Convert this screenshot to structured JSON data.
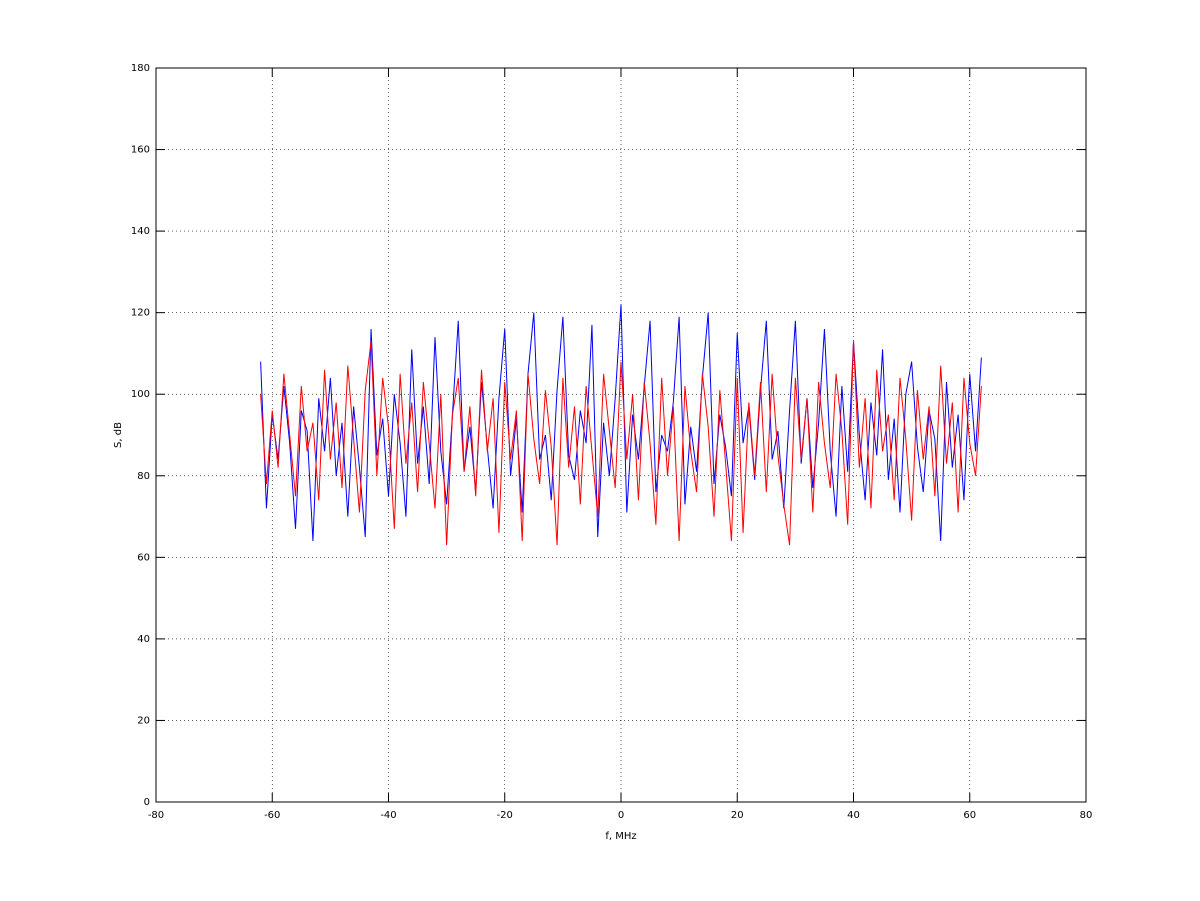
{
  "chart_data": {
    "type": "line",
    "x_label": "f, MHz",
    "y_label": "S, dB",
    "x": [
      -62,
      -61,
      -60,
      -59,
      -58,
      -57,
      -56,
      -55,
      -54,
      -53,
      -52,
      -51,
      -50,
      -49,
      -48,
      -47,
      -46,
      -45,
      -44,
      -43,
      -42,
      -41,
      -40,
      -39,
      -38,
      -37,
      -36,
      -35,
      -34,
      -33,
      -32,
      -31,
      -30,
      -29,
      -28,
      -27,
      -26,
      -25,
      -24,
      -23,
      -22,
      -21,
      -20,
      -19,
      -18,
      -17,
      -16,
      -15,
      -14,
      -13,
      -12,
      -11,
      -10,
      -9,
      -8,
      -7,
      -6,
      -5,
      -4,
      -3,
      -2,
      -1,
      0,
      1,
      2,
      3,
      4,
      5,
      6,
      7,
      8,
      9,
      10,
      11,
      12,
      13,
      14,
      15,
      16,
      17,
      18,
      19,
      20,
      21,
      22,
      23,
      24,
      25,
      26,
      27,
      28,
      29,
      30,
      31,
      32,
      33,
      34,
      35,
      36,
      37,
      38,
      39,
      40,
      41,
      42,
      43,
      44,
      45,
      46,
      47,
      48,
      49,
      50,
      51,
      52,
      53,
      54,
      55,
      56,
      57,
      58,
      59,
      60,
      61,
      62
    ],
    "series": [
      {
        "color": "#0000ff",
        "values": [
          108,
          72,
          95,
          84,
          102,
          88,
          67,
          96,
          91,
          64,
          99,
          86,
          104,
          80,
          93,
          70,
          97,
          82,
          65,
          116,
          85,
          94,
          75,
          100,
          88,
          70,
          111,
          83,
          97,
          78,
          114,
          86,
          73,
          95,
          118,
          81,
          92,
          76,
          103,
          87,
          72,
          99,
          116,
          80,
          94,
          71,
          105,
          120,
          84,
          90,
          74,
          101,
          119,
          85,
          79,
          96,
          88,
          117,
          65,
          93,
          80,
          99,
          122,
          71,
          95,
          84,
          102,
          118,
          76,
          90,
          86,
          98,
          119,
          73,
          92,
          81,
          104,
          120,
          78,
          95,
          87,
          75,
          115,
          88,
          97,
          79,
          101,
          118,
          84,
          91,
          72,
          96,
          118,
          83,
          99,
          77,
          93,
          116,
          86,
          70,
          102,
          81,
          113,
          90,
          74,
          98,
          85,
          111,
          79,
          94,
          71,
          100,
          108,
          87,
          76,
          96,
          89,
          64,
          103,
          82,
          95,
          74,
          105,
          86,
          109
        ]
      },
      {
        "color": "#ff0000",
        "values": [
          100,
          78,
          96,
          82,
          105,
          90,
          75,
          102,
          86,
          93,
          74,
          106,
          84,
          98,
          77,
          107,
          89,
          71,
          101,
          113,
          80,
          104,
          92,
          67,
          105,
          83,
          98,
          76,
          103,
          88,
          72,
          100,
          63,
          95,
          104,
          81,
          97,
          75,
          106,
          86,
          99,
          66,
          103,
          84,
          96,
          64,
          105,
          89,
          78,
          101,
          87,
          63,
          104,
          82,
          97,
          73,
          102,
          86,
          70,
          105,
          91,
          77,
          108,
          84,
          100,
          74,
          103,
          88,
          68,
          104,
          80,
          97,
          64,
          102,
          86,
          76,
          105,
          92,
          70,
          101,
          83,
          64,
          104,
          66,
          98,
          80,
          103,
          76,
          105,
          85,
          73,
          63,
          104,
          84,
          99,
          71,
          103,
          88,
          77,
          105,
          91,
          68,
          113,
          82,
          99,
          72,
          106,
          86,
          95,
          74,
          104,
          89,
          69,
          101,
          84,
          97,
          75,
          107,
          83,
          98,
          71,
          104,
          88,
          80,
          102
        ]
      }
    ],
    "xlim": [
      -80,
      80
    ],
    "xticks": [
      -80,
      -60,
      -40,
      -20,
      0,
      20,
      40,
      60,
      80
    ],
    "ylim": [
      0,
      180
    ],
    "yticks": [
      0,
      20,
      40,
      60,
      80,
      100,
      120,
      140,
      160,
      180
    ],
    "grid": true
  }
}
